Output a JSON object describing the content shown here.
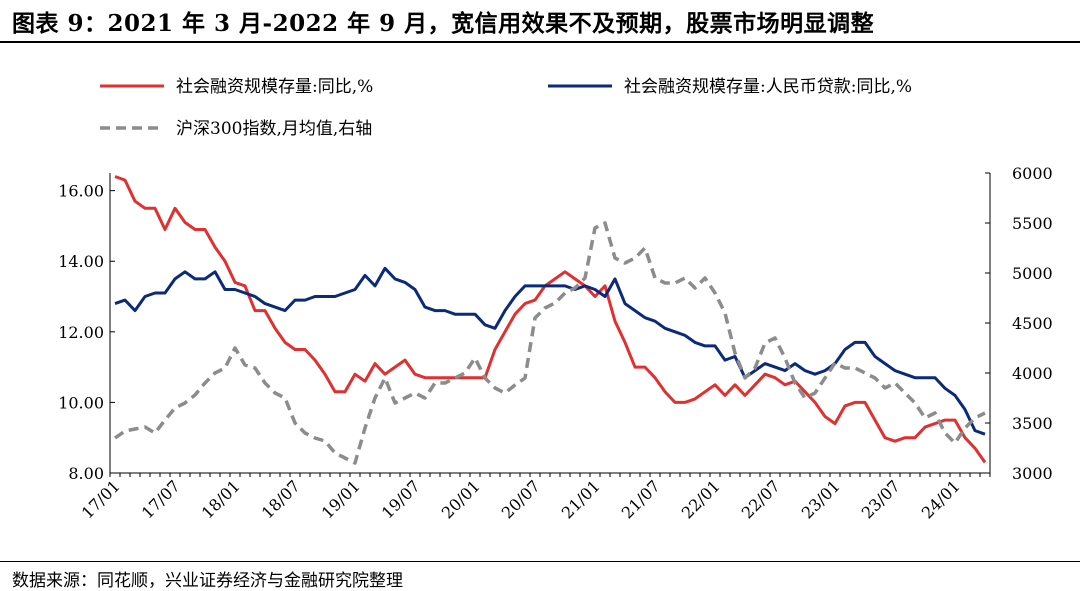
{
  "figure": {
    "title": "图表 9：2021 年 3 月-2022 年 9 月，宽信用效果不及预期，股票市场明显调整",
    "source": "数据来源：同花顺，兴业证券经济与金融研究院整理"
  },
  "chart_data": {
    "type": "line",
    "x": [
      "17/01",
      "17/02",
      "17/03",
      "17/04",
      "17/05",
      "17/06",
      "17/07",
      "17/08",
      "17/09",
      "17/10",
      "17/11",
      "17/12",
      "18/01",
      "18/02",
      "18/03",
      "18/04",
      "18/05",
      "18/06",
      "18/07",
      "18/08",
      "18/09",
      "18/10",
      "18/11",
      "18/12",
      "19/01",
      "19/02",
      "19/03",
      "19/04",
      "19/05",
      "19/06",
      "19/07",
      "19/08",
      "19/09",
      "19/10",
      "19/11",
      "19/12",
      "20/01",
      "20/02",
      "20/03",
      "20/04",
      "20/05",
      "20/06",
      "20/07",
      "20/08",
      "20/09",
      "20/10",
      "20/11",
      "20/12",
      "21/01",
      "21/02",
      "21/03",
      "21/04",
      "21/05",
      "21/06",
      "21/07",
      "21/08",
      "21/09",
      "21/10",
      "21/11",
      "21/12",
      "22/01",
      "22/02",
      "22/03",
      "22/04",
      "22/05",
      "22/06",
      "22/07",
      "22/08",
      "22/09",
      "22/10",
      "22/11",
      "22/12",
      "23/01",
      "23/02",
      "23/03",
      "23/04",
      "23/05",
      "23/06",
      "23/07",
      "23/08",
      "23/09",
      "23/10",
      "23/11",
      "23/12",
      "24/01",
      "24/02",
      "24/03",
      "24/04"
    ],
    "x_tick_labels": [
      "17/01",
      "17/07",
      "18/01",
      "18/07",
      "19/01",
      "19/07",
      "20/01",
      "20/07",
      "21/01",
      "21/07",
      "22/01",
      "22/07",
      "23/01",
      "23/07",
      "24/01"
    ],
    "legend_position": "top",
    "grid": false,
    "y_left": {
      "range": [
        8,
        16.5
      ],
      "ticks": [
        "8.00",
        "10.00",
        "12.00",
        "14.00",
        "16.00"
      ]
    },
    "y_right": {
      "range": [
        3000,
        6000
      ],
      "ticks": [
        "3000",
        "3500",
        "4000",
        "4500",
        "5000",
        "5500",
        "6000"
      ]
    },
    "series": [
      {
        "name": "社会融资规模存量:同比,%",
        "axis": "left",
        "color": "#e03030",
        "dash": "solid",
        "values": [
          16.4,
          16.3,
          15.7,
          15.5,
          15.5,
          14.9,
          15.5,
          15.1,
          14.9,
          14.9,
          14.4,
          14.0,
          13.4,
          13.3,
          12.6,
          12.6,
          12.1,
          11.7,
          11.5,
          11.5,
          11.2,
          10.8,
          10.3,
          10.3,
          10.8,
          10.6,
          11.1,
          10.8,
          11.0,
          11.2,
          10.8,
          10.7,
          10.7,
          10.7,
          10.7,
          10.7,
          10.7,
          10.7,
          11.5,
          12.0,
          12.5,
          12.8,
          12.9,
          13.3,
          13.5,
          13.7,
          13.5,
          13.3,
          13.0,
          13.3,
          12.3,
          11.7,
          11.0,
          11.0,
          10.7,
          10.3,
          10.0,
          10.0,
          10.1,
          10.3,
          10.5,
          10.2,
          10.5,
          10.2,
          10.5,
          10.8,
          10.7,
          10.5,
          10.6,
          10.3,
          10.0,
          9.6,
          9.4,
          9.9,
          10.0,
          10.0,
          9.5,
          9.0,
          8.9,
          9.0,
          9.0,
          9.3,
          9.4,
          9.5,
          9.5,
          9.0,
          8.7,
          8.3
        ]
      },
      {
        "name": "社会融资规模存量:人民币贷款:同比,%",
        "axis": "left",
        "color": "#0b2a7a",
        "dash": "solid",
        "values": [
          12.8,
          12.9,
          12.6,
          13.0,
          13.1,
          13.1,
          13.5,
          13.7,
          13.5,
          13.5,
          13.7,
          13.2,
          13.2,
          13.1,
          13.0,
          12.8,
          12.7,
          12.6,
          12.9,
          12.9,
          13.0,
          13.0,
          13.0,
          13.1,
          13.2,
          13.6,
          13.3,
          13.8,
          13.5,
          13.4,
          13.2,
          12.7,
          12.6,
          12.6,
          12.5,
          12.5,
          12.5,
          12.2,
          12.1,
          12.6,
          13.0,
          13.3,
          13.3,
          13.3,
          13.3,
          13.3,
          13.2,
          13.3,
          13.2,
          13.0,
          13.5,
          12.8,
          12.6,
          12.4,
          12.3,
          12.1,
          12.0,
          11.9,
          11.7,
          11.6,
          11.6,
          11.2,
          11.3,
          10.7,
          10.9,
          11.1,
          11.0,
          10.9,
          11.1,
          10.9,
          10.8,
          10.9,
          11.1,
          11.5,
          11.7,
          11.7,
          11.3,
          11.1,
          10.9,
          10.8,
          10.7,
          10.7,
          10.7,
          10.4,
          10.2,
          9.8,
          9.2,
          9.1
        ]
      },
      {
        "name": "沪深300指数,月均值,右轴",
        "axis": "right",
        "color": "#8c8c8c",
        "dash": "dashed",
        "values": [
          3350,
          3420,
          3440,
          3460,
          3400,
          3530,
          3650,
          3700,
          3780,
          3900,
          4000,
          4050,
          4250,
          4080,
          4050,
          3900,
          3800,
          3750,
          3500,
          3400,
          3350,
          3320,
          3200,
          3150,
          3100,
          3450,
          3750,
          3950,
          3700,
          3750,
          3800,
          3750,
          3900,
          3900,
          3950,
          4000,
          4150,
          3950,
          3850,
          3800,
          3880,
          3950,
          4550,
          4650,
          4700,
          4800,
          4850,
          4950,
          5450,
          5500,
          5150,
          5100,
          5150,
          5250,
          4950,
          4900,
          4900,
          4950,
          4850,
          4950,
          4800,
          4600,
          4200,
          3950,
          4050,
          4300,
          4350,
          4150,
          3900,
          3750,
          3800,
          3950,
          4100,
          4050,
          4050,
          4000,
          3950,
          3850,
          3900,
          3800,
          3700,
          3550,
          3600,
          3400,
          3300,
          3450,
          3550,
          3600
        ]
      }
    ]
  }
}
